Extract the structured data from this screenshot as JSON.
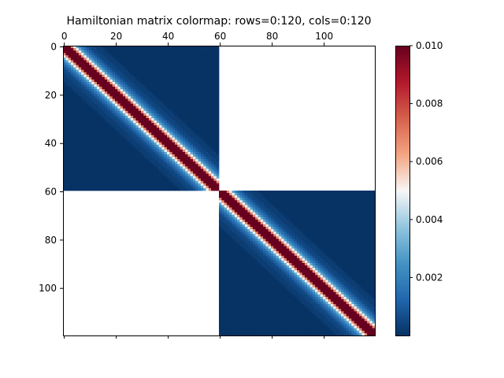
{
  "chart_data": {
    "type": "heatmap",
    "title": "Hamiltonian matrix colormap: rows=0:120, cols=0:120",
    "rows": 120,
    "cols": 120,
    "x_ticks": [
      0,
      20,
      40,
      60,
      80,
      100
    ],
    "x_ticks_position": "top",
    "y_ticks": [
      0,
      20,
      40,
      60,
      80,
      100
    ],
    "blocks": [
      {
        "rows": [
          0,
          59
        ],
        "cols": [
          0,
          59
        ]
      },
      {
        "rows": [
          60,
          119
        ],
        "cols": [
          60,
          119
        ]
      }
    ],
    "empty_value_color": "#ffffff",
    "colormap": "RdBu_r",
    "colorbar": {
      "vmin": 0.0,
      "vmax": 0.01,
      "ticks": [
        "0.002",
        "0.004",
        "0.006",
        "0.008",
        "0.010"
      ],
      "tick_values": [
        0.002,
        0.004,
        0.006,
        0.008,
        0.01
      ]
    },
    "bands": [
      {
        "offset": 0,
        "value": 0.01
      },
      {
        "offset": 1,
        "value": 0.01
      },
      {
        "offset": 2,
        "value": 0.01
      },
      {
        "offset": 3,
        "value": 0.0068
      },
      {
        "offset": 4,
        "value": 0.0049
      },
      {
        "offset": 5,
        "value": 0.003
      },
      {
        "offset": 6,
        "value": 0.0021
      },
      {
        "offset": 7,
        "value": 0.0015
      },
      {
        "offset": 8,
        "value": 0.0011
      },
      {
        "offset": 9,
        "value": 0.0007
      },
      {
        "offset": 10,
        "value": 0.0005
      },
      {
        "offset": 12,
        "value": 0.0003
      },
      {
        "offset": 15,
        "value": 0.0001
      }
    ],
    "colors": {
      "dark_blue": "#053061",
      "mid_blue": "#2166ac",
      "light_blue": "#92c5de",
      "white": "#f7f7f7",
      "light_red": "#f4a582",
      "mid_red": "#b2182b",
      "dark_red": "#67001f"
    }
  }
}
